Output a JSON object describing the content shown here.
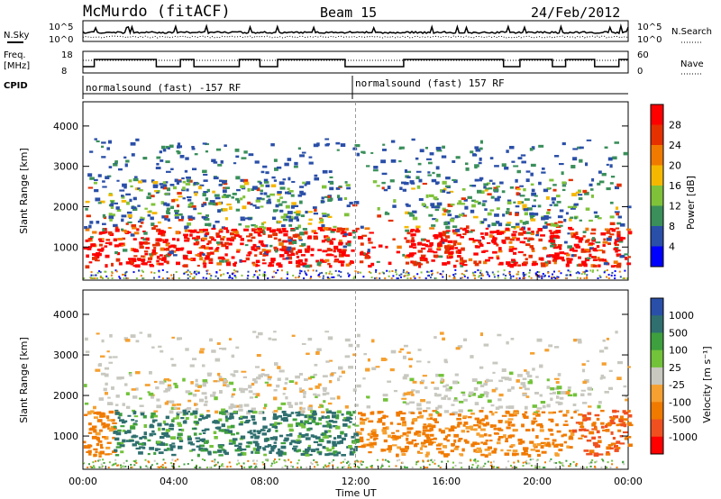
{
  "header": {
    "station": "McMurdo (fitACF)",
    "beam": "Beam 15",
    "date": "24/Feb/2012"
  },
  "noise_panel": {
    "left_label": "N.Sky",
    "left_ticks": [
      "10^5",
      "10^0"
    ],
    "right_label": "N.Search",
    "right_ticks": [
      "10^5",
      "10^0"
    ]
  },
  "freq_panel": {
    "left_label_1": "Freq.",
    "left_label_2": "[MHz]",
    "left_ticks": [
      "18",
      "8"
    ],
    "right_label": "Nave",
    "right_ticks": [
      "60",
      "0"
    ]
  },
  "cpid": {
    "label": "CPID",
    "segments": [
      {
        "text": "normalsound (fast) -157 RF",
        "start_hour": 0
      },
      {
        "text": "normalsound (fast) 157 RF",
        "start_hour": 12
      }
    ]
  },
  "x_axis": {
    "label": "Time UT",
    "ticks": [
      "00:00",
      "04:00",
      "08:00",
      "12:00",
      "16:00",
      "20:00",
      "00:00"
    ]
  },
  "colors": {
    "power": [
      "#0000ff",
      "#2a4fa8",
      "#3a8f5a",
      "#7fc23a",
      "#f5b700",
      "#f07a00",
      "#e53000",
      "#ff0000"
    ],
    "velocity_neg": [
      "#ff0000",
      "#f05020",
      "#f07a00",
      "#f5a030"
    ],
    "velocity_mid": "#c8c8c0",
    "velocity_pos": [
      "#72c23a",
      "#3e9f3e",
      "#2f6f6f",
      "#2a4fa8"
    ]
  },
  "chart_data": [
    {
      "type": "heatmap",
      "title": "Power",
      "xlabel": "Time UT",
      "ylabel": "Slant Range [km]",
      "xlim_hours": [
        0,
        24
      ],
      "ylim_km": [
        180,
        4600
      ],
      "y_ticks": [
        1000,
        2000,
        3000,
        4000
      ],
      "colorbar": {
        "label": "Power [dB]",
        "ticks": [
          "4",
          "8",
          "12",
          "16",
          "20",
          "24",
          "28"
        ],
        "range": [
          0,
          32
        ]
      },
      "bands": [
        {
          "from_h": 0.0,
          "to_h": 11.9,
          "range_km": [
            600,
            1400
          ],
          "value": "24-32 dB"
        },
        {
          "from_h": 14.2,
          "to_h": 23.9,
          "range_km": [
            550,
            1400
          ],
          "value": "24-32 dB"
        },
        {
          "from_h": 1.0,
          "to_h": 10.5,
          "range_km": [
            1600,
            2600
          ],
          "value": "8-16 dB"
        },
        {
          "from_h": 16.8,
          "to_h": 21.5,
          "range_km": [
            1700,
            2500
          ],
          "value": "8-16 dB"
        }
      ]
    },
    {
      "type": "heatmap",
      "title": "Velocity",
      "xlabel": "Time UT",
      "ylabel": "Slant Range [km]",
      "xlim_hours": [
        0,
        24
      ],
      "ylim_km": [
        180,
        4600
      ],
      "y_ticks": [
        1000,
        2000,
        3000,
        4000
      ],
      "colorbar": {
        "label": "Velocity [m s⁻¹]",
        "ticks": [
          "1000",
          "500",
          "100",
          "25",
          "-25",
          "-100",
          "-500",
          "-1000"
        ],
        "range": [
          -1200,
          1200
        ]
      },
      "bands": [
        {
          "from_h": 0.0,
          "to_h": 1.3,
          "range_km": [
            500,
            1500
          ],
          "value": "-100 to -500 m/s"
        },
        {
          "from_h": 1.3,
          "to_h": 12.0,
          "range_km": [
            600,
            1600
          ],
          "value": "100 to 500 m/s"
        },
        {
          "from_h": 12.0,
          "to_h": 21.0,
          "range_km": [
            700,
            2100
          ],
          "value": "-100 to -500 m/s"
        },
        {
          "from_h": 1.0,
          "to_h": 10.5,
          "range_km": [
            1800,
            2600
          ],
          "value": "-25 to 25 m/s"
        }
      ]
    }
  ]
}
